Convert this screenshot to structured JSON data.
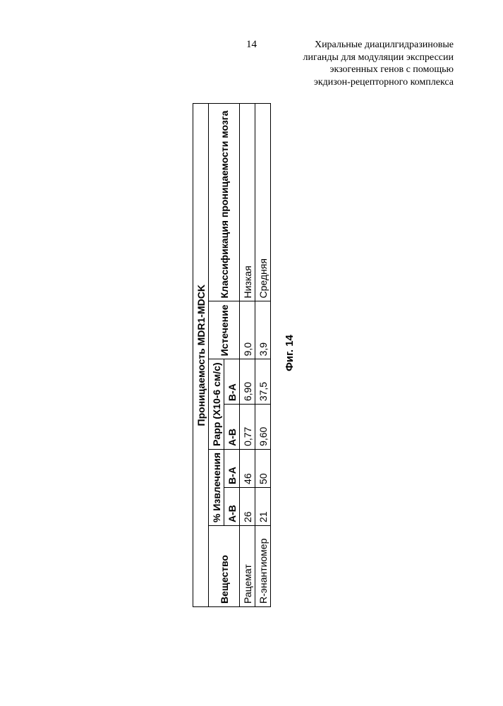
{
  "page": {
    "number": "14",
    "header_lines": [
      "Хиральные диацилгидразиновые",
      "лиганды для модуляции экспрессии",
      "экзогенных генов с помощью",
      "экдизон-рецепторного комплекса"
    ]
  },
  "table": {
    "title": "Проницаемость MDR1-MDCK",
    "col_widths": {
      "substance": 115,
      "recovery_ab": 40,
      "recovery_ba": 40,
      "papp_ab": 50,
      "papp_ba": 50,
      "efflux": 80,
      "classification": 280
    },
    "headers": {
      "substance": "Вещество",
      "recovery": "% Извлечения",
      "papp": "Papp (X10-6 см/с)",
      "efflux": "Истечение",
      "classification": "Классификация проницаемости мозга",
      "ab": "A-B",
      "ba": "B-A"
    },
    "rows": [
      {
        "substance": "Рацемат",
        "recovery_ab": "26",
        "recovery_ba": "46",
        "papp_ab": "0,77",
        "papp_ba": "6,90",
        "efflux": "9,0",
        "classification": "Низкая"
      },
      {
        "substance": "R-энантиомер",
        "recovery_ab": "21",
        "recovery_ba": "50",
        "papp_ab": "9,60",
        "papp_ba": "37,5",
        "efflux": "3,9",
        "classification": "Средняя"
      }
    ],
    "caption": "Фиг. 14"
  }
}
